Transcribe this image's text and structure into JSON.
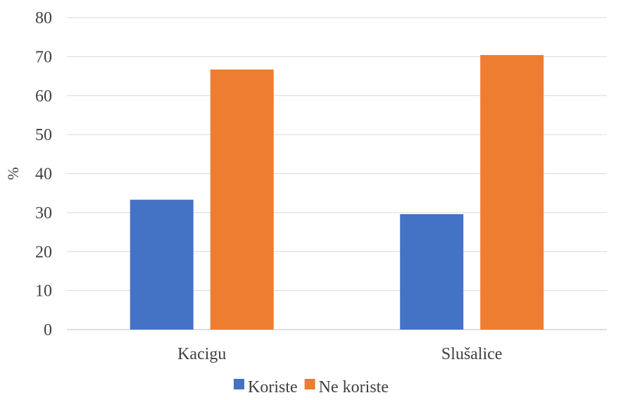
{
  "chart_data": {
    "type": "bar",
    "title": "",
    "xlabel": "",
    "ylabel": "%",
    "ylim": [
      0,
      80
    ],
    "yticks": [
      0,
      10,
      20,
      30,
      40,
      50,
      60,
      70,
      80
    ],
    "grid": true,
    "legend_position": "bottom",
    "categories": [
      "Kacigu",
      "Slušalice"
    ],
    "series": [
      {
        "name": "Koriste",
        "color": "#4472C4",
        "values": [
          33.3,
          29.6
        ]
      },
      {
        "name": "Ne koriste",
        "color": "#ED7D31",
        "values": [
          66.7,
          70.4
        ]
      }
    ]
  }
}
